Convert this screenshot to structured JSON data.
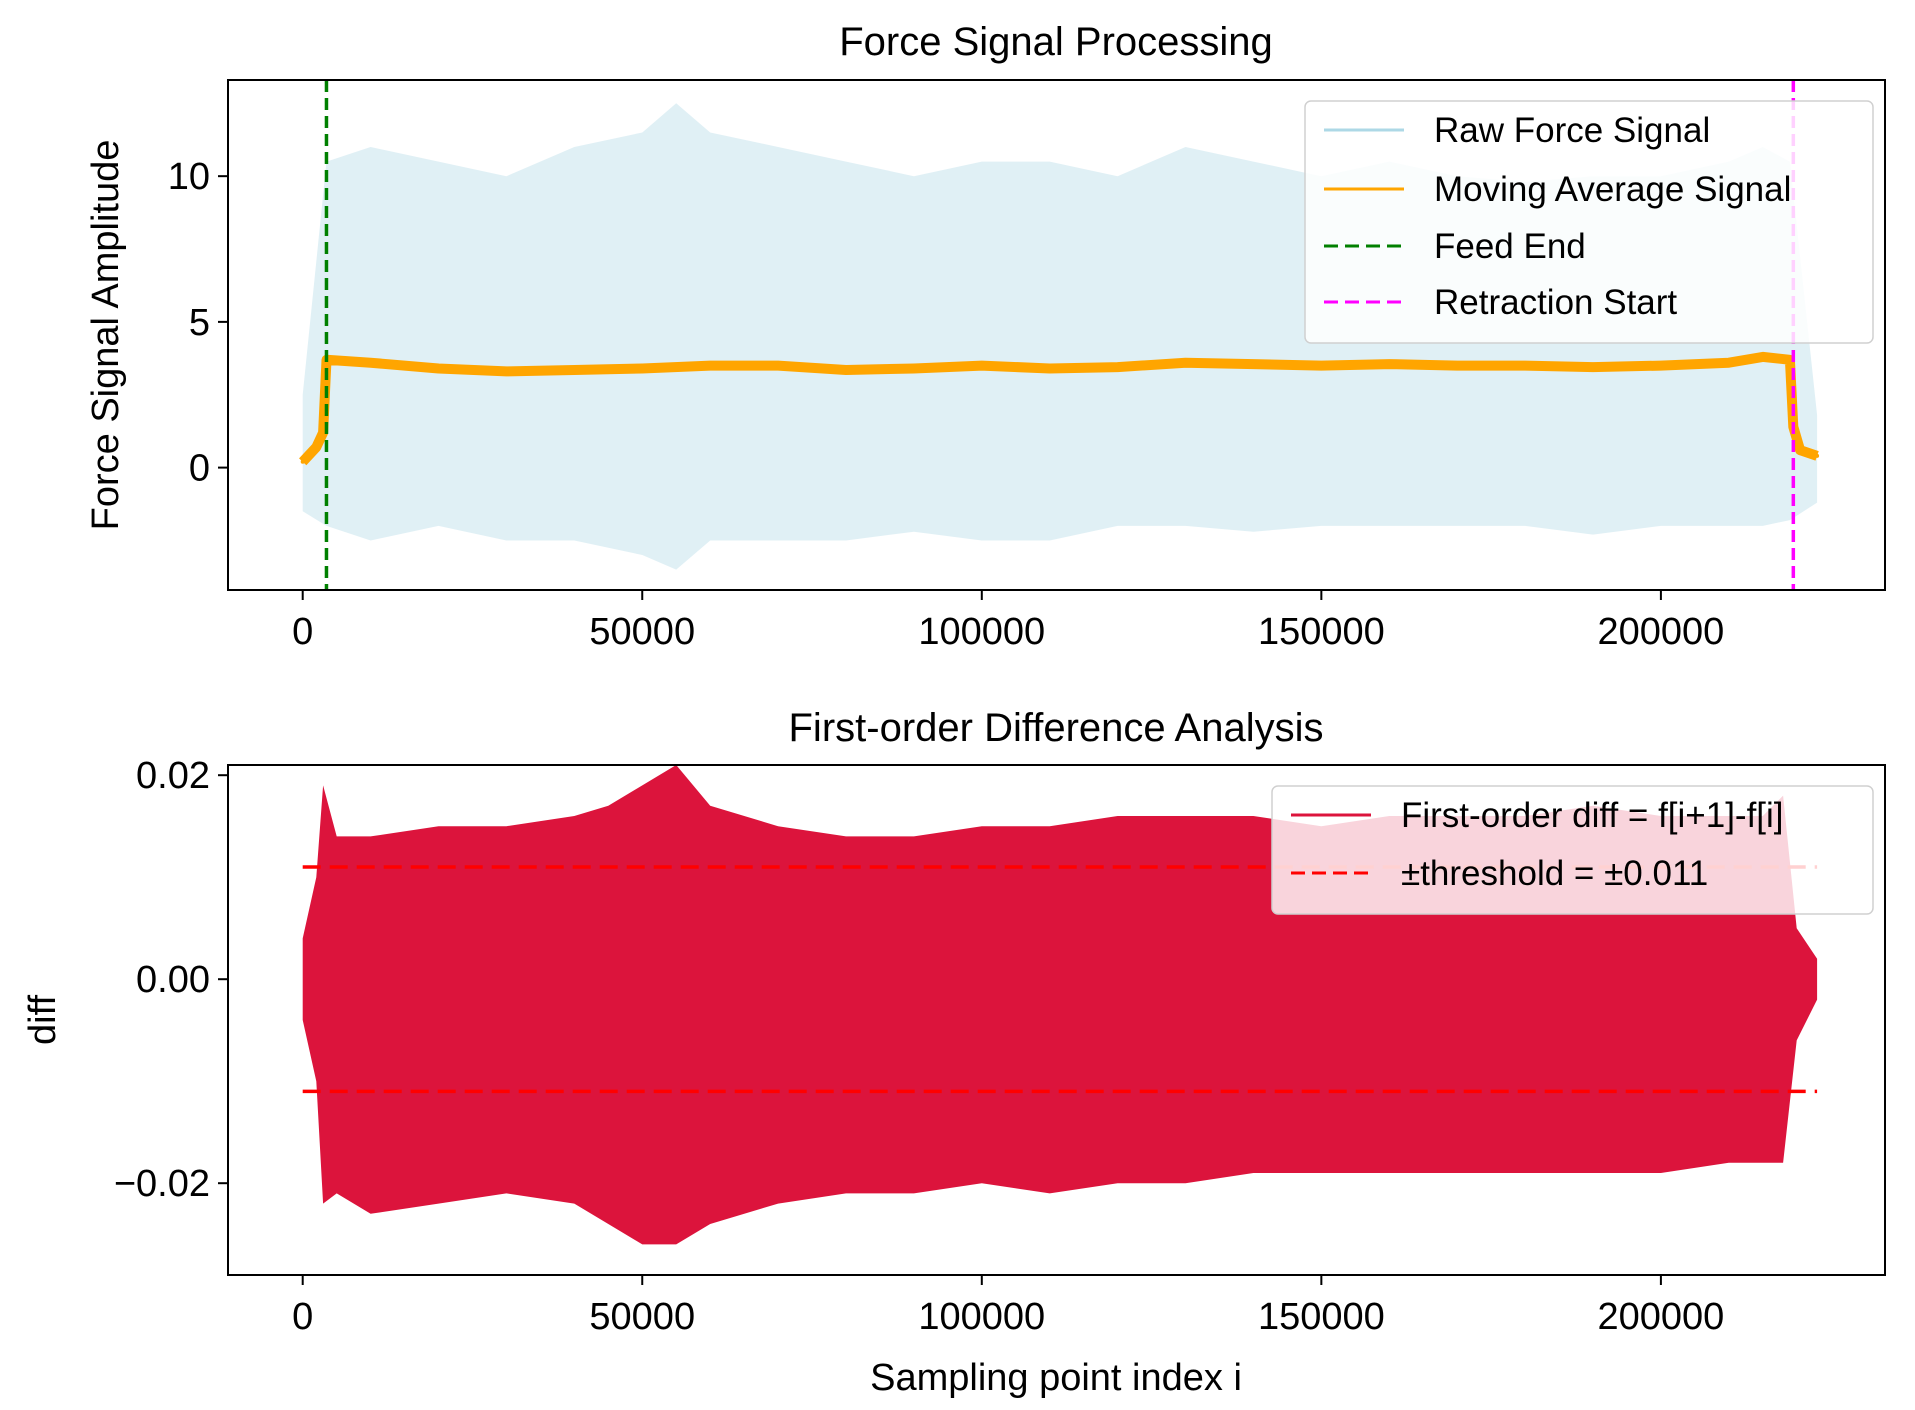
{
  "chart_data": [
    {
      "type": "line",
      "title": "Force Signal Processing",
      "xlabel": "",
      "ylabel": "Force Signal Amplitude",
      "xlim": [
        -11000,
        233000
      ],
      "ylim": [
        -4.2,
        13.3
      ],
      "xticks": [
        0,
        50000,
        100000,
        150000,
        200000
      ],
      "xtick_labels": [
        "0",
        "50000",
        "100000",
        "150000",
        "200000"
      ],
      "yticks": [
        0,
        5,
        10
      ],
      "ytick_labels": [
        "0",
        "5",
        "10"
      ],
      "grid": false,
      "legend_position": "top-right",
      "series": [
        {
          "name": "Raw Force Signal",
          "style": "band",
          "color": "#add8e6",
          "x": [
            0,
            3500,
            10000,
            20000,
            30000,
            40000,
            50000,
            55000,
            60000,
            70000,
            80000,
            90000,
            100000,
            110000,
            120000,
            130000,
            140000,
            150000,
            160000,
            170000,
            180000,
            190000,
            200000,
            210000,
            215000,
            219000,
            223000
          ],
          "upper": [
            2.5,
            10.5,
            11.0,
            10.5,
            10.0,
            11.0,
            11.5,
            12.5,
            11.5,
            11.0,
            10.5,
            10.0,
            10.5,
            10.5,
            10.0,
            11.0,
            10.5,
            10.0,
            10.5,
            10.0,
            9.8,
            10.0,
            10.0,
            10.5,
            11.0,
            10.5,
            1.8
          ],
          "lower": [
            -1.5,
            -2.0,
            -2.5,
            -2.0,
            -2.5,
            -2.5,
            -3.0,
            -3.5,
            -2.5,
            -2.5,
            -2.5,
            -2.2,
            -2.5,
            -2.5,
            -2.0,
            -2.0,
            -2.2,
            -2.0,
            -2.0,
            -2.0,
            -2.0,
            -2.3,
            -2.0,
            -2.0,
            -2.0,
            -1.8,
            -1.2
          ]
        },
        {
          "name": "Moving Average Signal",
          "style": "line",
          "color": "#ffa500",
          "x": [
            0,
            2000,
            3000,
            3500,
            10000,
            20000,
            30000,
            40000,
            50000,
            60000,
            70000,
            80000,
            90000,
            100000,
            110000,
            120000,
            130000,
            140000,
            150000,
            160000,
            170000,
            180000,
            190000,
            200000,
            210000,
            215000,
            219000,
            219500,
            220500,
            223000
          ],
          "y": [
            0.2,
            0.7,
            1.2,
            3.7,
            3.6,
            3.4,
            3.3,
            3.35,
            3.4,
            3.5,
            3.5,
            3.35,
            3.4,
            3.5,
            3.4,
            3.45,
            3.6,
            3.55,
            3.5,
            3.55,
            3.5,
            3.5,
            3.45,
            3.5,
            3.6,
            3.8,
            3.7,
            1.4,
            0.6,
            0.4
          ]
        },
        {
          "name": "Feed End",
          "style": "vline",
          "color": "#008000",
          "x": 3500
        },
        {
          "name": "Retraction Start",
          "style": "vline",
          "color": "#ff00ff",
          "x": 219500
        }
      ]
    },
    {
      "type": "line",
      "title": "First-order Difference Analysis",
      "xlabel": "Sampling point index i",
      "ylabel": "diff",
      "xlim": [
        -11000,
        233000
      ],
      "ylim": [
        -0.029,
        0.021
      ],
      "xticks": [
        0,
        50000,
        100000,
        150000,
        200000
      ],
      "xtick_labels": [
        "0",
        "50000",
        "100000",
        "150000",
        "200000"
      ],
      "yticks": [
        0.02,
        0.0,
        -0.02
      ],
      "ytick_labels": [
        "0.02",
        "0.00",
        "−0.02"
      ],
      "grid": false,
      "legend_position": "top-right",
      "series": [
        {
          "name": "First-order diff = f[i+1]-f[i]",
          "style": "band",
          "color": "#dc143c",
          "x": [
            0,
            2000,
            3000,
            5000,
            10000,
            20000,
            30000,
            40000,
            45000,
            50000,
            55000,
            60000,
            70000,
            80000,
            90000,
            100000,
            110000,
            120000,
            130000,
            140000,
            150000,
            160000,
            170000,
            180000,
            190000,
            200000,
            210000,
            215000,
            218000,
            220000,
            223000
          ],
          "upper": [
            0.004,
            0.01,
            0.019,
            0.014,
            0.014,
            0.015,
            0.015,
            0.016,
            0.017,
            0.019,
            0.021,
            0.017,
            0.015,
            0.014,
            0.014,
            0.015,
            0.015,
            0.016,
            0.016,
            0.016,
            0.015,
            0.016,
            0.016,
            0.016,
            0.017,
            0.016,
            0.016,
            0.016,
            0.018,
            0.005,
            0.002
          ],
          "lower": [
            -0.004,
            -0.01,
            -0.022,
            -0.021,
            -0.023,
            -0.022,
            -0.021,
            -0.022,
            -0.024,
            -0.026,
            -0.026,
            -0.024,
            -0.022,
            -0.021,
            -0.021,
            -0.02,
            -0.021,
            -0.02,
            -0.02,
            -0.019,
            -0.019,
            -0.019,
            -0.019,
            -0.019,
            -0.019,
            -0.019,
            -0.018,
            -0.018,
            -0.018,
            -0.006,
            -0.002
          ]
        },
        {
          "name": "±threshold = ±0.011",
          "style": "hlines",
          "color": "#ff0000",
          "y": [
            0.011,
            -0.011
          ],
          "x_range": [
            0,
            223000
          ]
        }
      ]
    }
  ]
}
